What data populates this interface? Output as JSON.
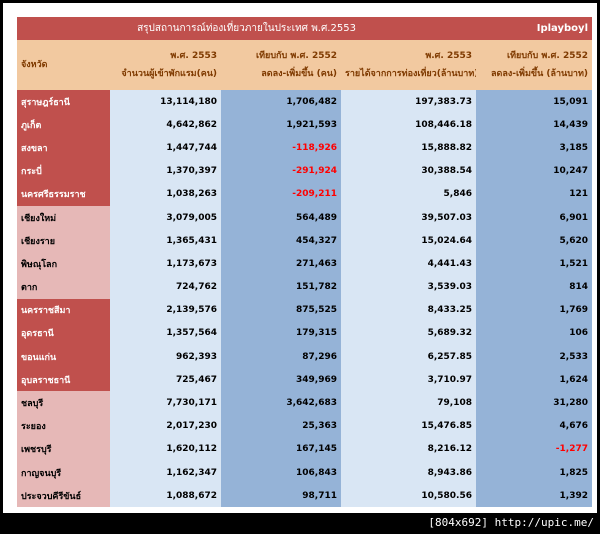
{
  "title": "สรุปสถานการณ์ท่องเที่ยวภายในประเทศ พ.ศ.2553",
  "brand": "Iplayboyl",
  "headers": {
    "province": "จังหวัด",
    "col1_line1": "พ.ศ. 2553",
    "col1_line2": "จำนวนผู้เข้าพักแรม(คน)",
    "col2_line1": "เทียบกับ พ.ศ. 2552",
    "col2_line2": "ลดลง-เพิ่มขึ้น (คน)",
    "col3_line1": "พ.ศ. 2553",
    "col3_line2": "รายได้จากการท่องเที่ยว(ล้านบาท)",
    "col4_line1": "เทียบกับ พ.ศ. 2552",
    "col4_line2": "ลดลง-เพิ่มขึ้น (ล้านบาท)"
  },
  "rows": [
    {
      "province": "สุราษฎร์ธานี",
      "visitors": "13,114,180",
      "visitors_change": "1,706,482",
      "revenue": "197,383.73",
      "revenue_change": "15,091",
      "group": "g1"
    },
    {
      "province": "ภูเก็ต",
      "visitors": "4,642,862",
      "visitors_change": "1,921,593",
      "revenue": "108,446.18",
      "revenue_change": "14,439",
      "group": "g1"
    },
    {
      "province": "สงขลา",
      "visitors": "1,447,744",
      "visitors_change": "-118,926",
      "revenue": "15,888.82",
      "revenue_change": "3,185",
      "group": "g1"
    },
    {
      "province": "กระบี่",
      "visitors": "1,370,397",
      "visitors_change": "-291,924",
      "revenue": "30,388.54",
      "revenue_change": "10,247",
      "group": "g1"
    },
    {
      "province": "นครศรีธรรมราช",
      "visitors": "1,038,263",
      "visitors_change": "-209,211",
      "revenue": "5,846",
      "revenue_change": "121",
      "group": "g1"
    },
    {
      "province": "เชียงใหม่",
      "visitors": "3,079,005",
      "visitors_change": "564,489",
      "revenue": "39,507.03",
      "revenue_change": "6,901",
      "group": "g2"
    },
    {
      "province": "เชียงราย",
      "visitors": "1,365,431",
      "visitors_change": "454,327",
      "revenue": "15,024.64",
      "revenue_change": "5,620",
      "group": "g2"
    },
    {
      "province": "พิษณุโลก",
      "visitors": "1,173,673",
      "visitors_change": "271,463",
      "revenue": "4,441.43",
      "revenue_change": "1,521",
      "group": "g2"
    },
    {
      "province": "ตาก",
      "visitors": "724,762",
      "visitors_change": "151,782",
      "revenue": "3,539.03",
      "revenue_change": "814",
      "group": "g2"
    },
    {
      "province": "นครราชสีมา",
      "visitors": "2,139,576",
      "visitors_change": "875,525",
      "revenue": "8,433.25",
      "revenue_change": "1,769",
      "group": "g3"
    },
    {
      "province": "อุดรธานี",
      "visitors": "1,357,564",
      "visitors_change": "179,315",
      "revenue": "5,689.32",
      "revenue_change": "106",
      "group": "g3"
    },
    {
      "province": "ขอนแก่น",
      "visitors": "962,393",
      "visitors_change": "87,296",
      "revenue": "6,257.85",
      "revenue_change": "2,533",
      "group": "g3"
    },
    {
      "province": "อุบลราชธานี",
      "visitors": "725,467",
      "visitors_change": "349,969",
      "revenue": "3,710.97",
      "revenue_change": "1,624",
      "group": "g3"
    },
    {
      "province": "ชลบุรี",
      "visitors": "7,730,171",
      "visitors_change": "3,642,683",
      "revenue": "79,108",
      "revenue_change": "31,280",
      "group": "g4"
    },
    {
      "province": "ระยอง",
      "visitors": "2,017,230",
      "visitors_change": "25,363",
      "revenue": "15,476.85",
      "revenue_change": "4,676",
      "group": "g4"
    },
    {
      "province": "เพชรบุรี",
      "visitors": "1,620,112",
      "visitors_change": "167,145",
      "revenue": "8,216.12",
      "revenue_change": "-1,277",
      "group": "g4"
    },
    {
      "province": "กาญจนบุรี",
      "visitors": "1,162,347",
      "visitors_change": "106,843",
      "revenue": "8,943.86",
      "revenue_change": "1,825",
      "group": "g4"
    },
    {
      "province": "ประจวบคีรีขันธ์",
      "visitors": "1,088,672",
      "visitors_change": "98,711",
      "revenue": "10,580.56",
      "revenue_change": "1,392",
      "group": "g4"
    }
  ],
  "footer": "[804x692] http://upic.me/",
  "colors": {
    "title_bg": "#c0504d",
    "header_bg": "#f2c9a0",
    "light_blue": "#d9e6f4",
    "mid_blue": "#95b3d7",
    "negative": "#ff0000"
  }
}
